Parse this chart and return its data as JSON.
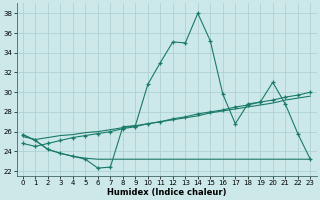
{
  "xlabel": "Humidex (Indice chaleur)",
  "xlim": [
    -0.5,
    23.5
  ],
  "ylim": [
    21.5,
    39.0
  ],
  "yticks": [
    22,
    24,
    26,
    28,
    30,
    32,
    34,
    36,
    38
  ],
  "xticks": [
    0,
    1,
    2,
    3,
    4,
    5,
    6,
    7,
    8,
    9,
    10,
    11,
    12,
    13,
    14,
    15,
    16,
    17,
    18,
    19,
    20,
    21,
    22,
    23
  ],
  "bg_color": "#cce8e8",
  "line_color": "#1a7a6a",
  "grid_color": "#aacece",
  "line1_x": [
    0,
    1,
    2,
    3,
    4,
    5,
    6,
    7,
    8,
    9,
    10,
    11,
    12,
    13,
    14,
    15,
    16,
    17,
    18,
    19,
    20,
    21,
    22,
    23
  ],
  "line1_y": [
    25.7,
    25.1,
    24.2,
    23.8,
    23.5,
    23.2,
    22.3,
    22.4,
    26.5,
    26.6,
    30.8,
    33.0,
    35.1,
    35.0,
    38.0,
    35.2,
    29.8,
    26.8,
    28.8,
    29.0,
    31.0,
    28.8,
    25.8,
    23.2
  ],
  "line2_x": [
    0,
    1,
    2,
    3,
    4,
    5,
    6,
    7,
    8,
    9,
    10,
    11,
    12,
    13,
    14,
    15,
    16,
    17,
    18,
    19,
    20,
    21,
    22,
    23
  ],
  "line2_y": [
    24.8,
    24.5,
    24.8,
    25.1,
    25.4,
    25.6,
    25.8,
    26.0,
    26.3,
    26.5,
    26.8,
    27.0,
    27.3,
    27.5,
    27.8,
    28.0,
    28.2,
    28.5,
    28.7,
    29.0,
    29.2,
    29.5,
    29.7,
    30.0
  ],
  "line3_x": [
    0,
    1,
    2,
    3,
    4,
    5,
    6,
    7,
    8,
    9,
    10,
    11,
    12,
    13,
    14,
    15,
    16,
    17,
    18,
    19,
    20,
    21,
    22,
    23
  ],
  "line3_y": [
    25.5,
    25.2,
    25.4,
    25.6,
    25.7,
    25.9,
    26.0,
    26.2,
    26.4,
    26.6,
    26.8,
    27.0,
    27.2,
    27.4,
    27.6,
    27.9,
    28.1,
    28.3,
    28.5,
    28.7,
    28.9,
    29.2,
    29.4,
    29.6
  ],
  "line4_x": [
    0,
    1,
    2,
    3,
    4,
    5,
    6,
    7,
    8,
    9,
    10,
    11,
    12,
    13,
    14,
    15,
    16,
    17,
    18,
    19,
    20,
    21,
    22,
    23
  ],
  "line4_y": [
    25.7,
    25.1,
    24.2,
    23.8,
    23.5,
    23.3,
    23.2,
    23.2,
    23.2,
    23.2,
    23.2,
    23.2,
    23.2,
    23.2,
    23.2,
    23.2,
    23.2,
    23.2,
    23.2,
    23.2,
    23.2,
    23.2,
    23.2,
    23.2
  ]
}
